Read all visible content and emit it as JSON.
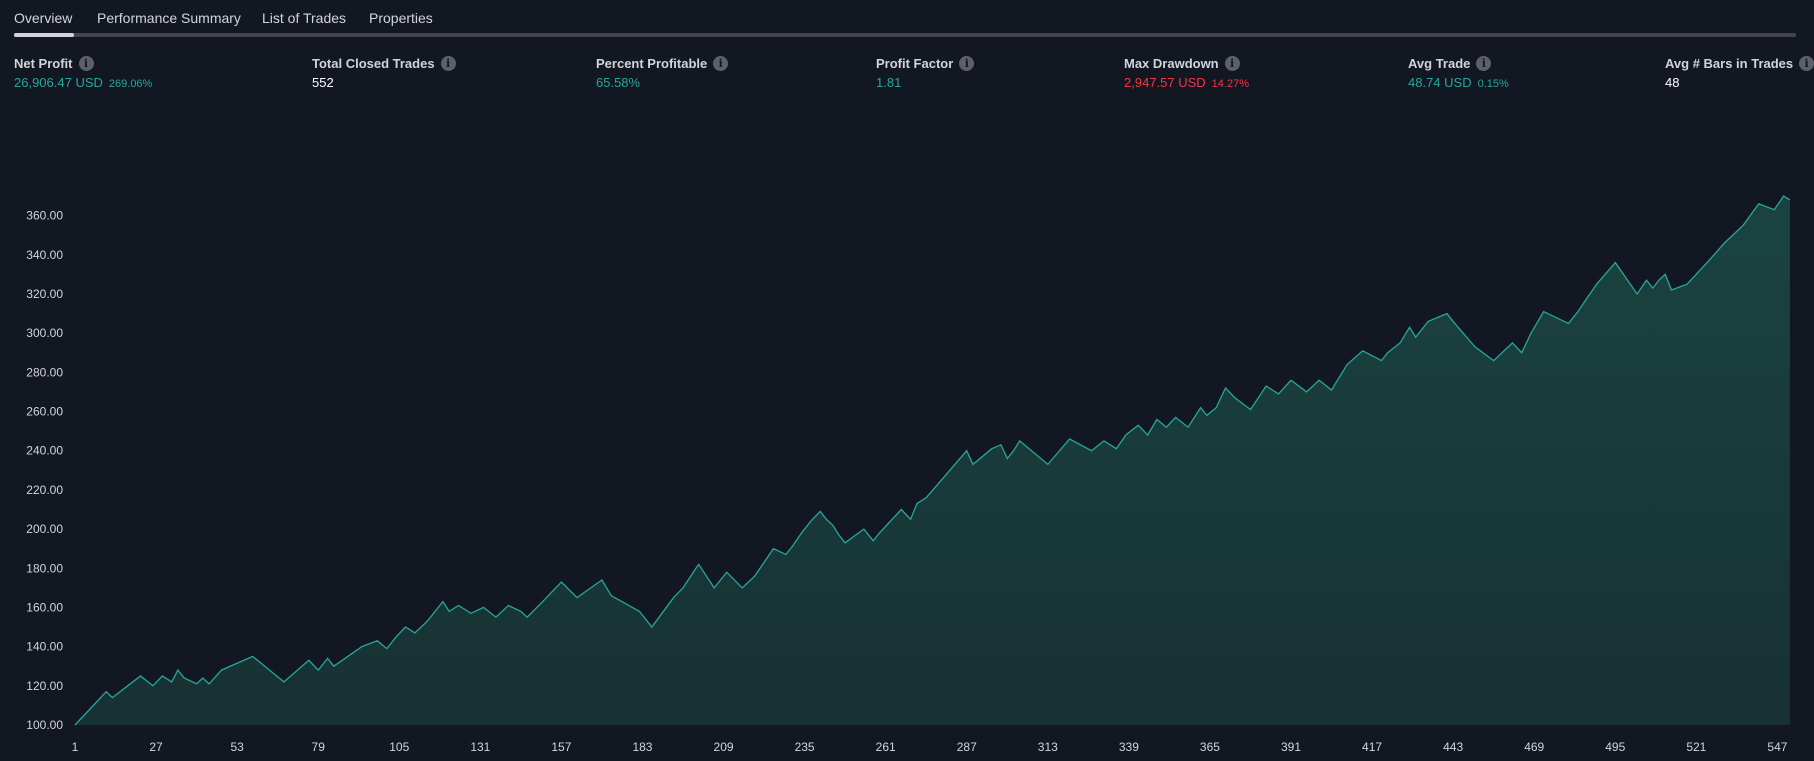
{
  "tabs": [
    {
      "label": "Overview",
      "active": true
    },
    {
      "label": "Performance Summary",
      "active": false
    },
    {
      "label": "List of Trades",
      "active": false
    },
    {
      "label": "Properties",
      "active": false
    }
  ],
  "info_icon_glyph": "i",
  "metrics": [
    {
      "label": "Net Profit",
      "value": "26,906.47 USD",
      "pct": "269.06%",
      "color": "#26a69a"
    },
    {
      "label": "Total Closed Trades",
      "value": "552",
      "pct": "",
      "color": "#ffffff"
    },
    {
      "label": "Percent Profitable",
      "value": "65.58%",
      "pct": "",
      "color": "#26a69a"
    },
    {
      "label": "Profit Factor",
      "value": "1.81",
      "pct": "",
      "color": "#26a69a"
    },
    {
      "label": "Max Drawdown",
      "value": "2,947.57 USD",
      "pct": "14.27%",
      "color": "#f23645"
    },
    {
      "label": "Avg Trade",
      "value": "48.74 USD",
      "pct": "0.15%",
      "color": "#26a69a"
    },
    {
      "label": "Avg # Bars in Trades",
      "value": "48",
      "pct": "",
      "color": "#ffffff"
    }
  ],
  "chart_data": {
    "type": "area",
    "title": "",
    "xlabel": "",
    "ylabel": "",
    "xlim": [
      1,
      552
    ],
    "ylim": [
      100,
      370
    ],
    "y_ticks": [
      "100.00",
      "120.00",
      "140.00",
      "160.00",
      "180.00",
      "200.00",
      "220.00",
      "240.00",
      "260.00",
      "280.00",
      "300.00",
      "320.00",
      "340.00",
      "360.00"
    ],
    "x_ticks": [
      "1",
      "27",
      "53",
      "79",
      "105",
      "131",
      "157",
      "183",
      "209",
      "235",
      "261",
      "287",
      "313",
      "339",
      "365",
      "391",
      "417",
      "443",
      "469",
      "495",
      "521",
      "547"
    ],
    "line_color": "#26a69a",
    "fill_color": "#1b4641",
    "series": [
      {
        "x": [
          1,
          11,
          13,
          22,
          26,
          29,
          32,
          34,
          36,
          40,
          42,
          44,
          48,
          58,
          68,
          76,
          79,
          82,
          84,
          93,
          98,
          101,
          104,
          107,
          110,
          114,
          119,
          121,
          124,
          128,
          132,
          136,
          140,
          144,
          146,
          151,
          154,
          157,
          162,
          170,
          173,
          182,
          186,
          193,
          196,
          201,
          206,
          210,
          215,
          219,
          225,
          229,
          231,
          234,
          237,
          240,
          242,
          244,
          246,
          248,
          254,
          257,
          259,
          266,
          269,
          271,
          274,
          287,
          289,
          295,
          298,
          300,
          302,
          304,
          313,
          320,
          327,
          331,
          335,
          338,
          342,
          345,
          348,
          351,
          354,
          358,
          362,
          364,
          367,
          370,
          373,
          378,
          383,
          387,
          391,
          396,
          400,
          404,
          409,
          414,
          420,
          422,
          426,
          429,
          431,
          435,
          441,
          443,
          450,
          456,
          462,
          465,
          468,
          472,
          480,
          483,
          486,
          489,
          495,
          502,
          505,
          507,
          509,
          511,
          513,
          518,
          525,
          530,
          536,
          541,
          546,
          549,
          551
        ],
        "y": [
          100,
          117,
          114,
          125,
          120,
          125,
          122,
          128,
          124,
          121,
          124,
          121,
          128,
          135,
          122,
          133,
          128,
          134,
          130,
          140,
          143,
          139,
          145,
          150,
          147,
          153,
          163,
          158,
          161,
          157,
          160,
          155,
          161,
          158,
          155,
          163,
          168,
          173,
          165,
          174,
          166,
          158,
          150,
          165,
          170,
          182,
          170,
          178,
          170,
          176,
          190,
          187,
          191,
          198,
          204,
          209,
          205,
          202,
          197,
          193,
          200,
          194,
          198,
          210,
          205,
          213,
          216,
          240,
          233,
          241,
          243,
          236,
          240,
          245,
          233,
          246,
          240,
          245,
          241,
          248,
          253,
          248,
          256,
          252,
          257,
          252,
          262,
          258,
          262,
          272,
          267,
          261,
          273,
          269,
          276,
          270,
          276,
          271,
          284,
          291,
          286,
          290,
          295,
          303,
          298,
          306,
          310,
          306,
          293,
          286,
          295,
          290,
          300,
          311,
          305,
          311,
          318,
          325,
          336,
          320,
          327,
          323,
          327,
          330,
          322,
          325,
          337,
          346,
          355,
          366,
          363,
          370,
          368
        ]
      }
    ]
  }
}
